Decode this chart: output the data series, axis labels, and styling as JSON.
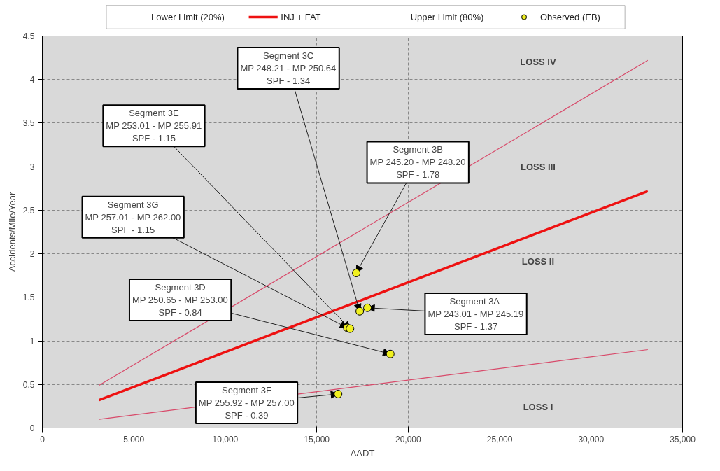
{
  "chart_data": {
    "type": "line",
    "xlabel": "AADT",
    "ylabel": "Accidents/Mile/Year",
    "xlim": [
      0,
      35000
    ],
    "ylim": [
      0,
      4.5
    ],
    "xticks": [
      0,
      {
        "value": 5000,
        "label": "5,000"
      },
      {
        "value": 10000,
        "label": "10,000"
      },
      {
        "value": 15000,
        "label": "15,000"
      },
      {
        "value": 20000,
        "label": "20,000"
      },
      {
        "value": 25000,
        "label": "25,000"
      },
      {
        "value": 30000,
        "label": "30,000"
      },
      {
        "value": 35000,
        "label": "35,000"
      }
    ],
    "yticks": [
      0,
      0.5,
      1,
      1.5,
      2,
      2.5,
      3,
      3.5,
      4,
      4.5
    ],
    "grid": true,
    "legend": "top",
    "line_style": "solid",
    "series": [
      {
        "name": "Lower Limit (20%)",
        "color": "#d84a6a",
        "x": [
          3100,
          33100
        ],
        "values": [
          0.1,
          0.9
        ]
      },
      {
        "name": "INJ + FAT",
        "color": "#ee1111",
        "x": [
          3100,
          33100
        ],
        "values": [
          0.32,
          2.72
        ]
      },
      {
        "name": "Upper Limit (80%)",
        "color": "#d84a6a",
        "x": [
          3100,
          33100
        ],
        "values": [
          0.49,
          4.22
        ]
      },
      {
        "name": "Observed (EB)",
        "type": "scatter",
        "marker": "circle",
        "color": "#f0f020",
        "x": [
          17770,
          17160,
          17350,
          16670,
          16820,
          16170,
          19020
        ],
        "values": [
          1.38,
          1.78,
          1.34,
          1.15,
          1.14,
          0.39,
          0.85
        ]
      }
    ],
    "annotations": [
      {
        "text": "Segment 3C\nMP 248.21 - MP 250.64\nSPF - 1.34",
        "x": 17350,
        "y": 1.34
      },
      {
        "text": "Segment 3E\nMP 253.01 - MP 255.91\nSPF - 1.15",
        "x": 16820,
        "y": 1.14
      },
      {
        "text": "Segment 3B\nMP 245.20 - MP 248.20\nSPF - 1.78",
        "x": 17160,
        "y": 1.78
      },
      {
        "text": "Segment 3G\nMP 257.01 - MP 262.00\nSPF - 1.15",
        "x": 16670,
        "y": 1.15
      },
      {
        "text": "Segment 3D\nMP 250.65 - MP 253.00\nSPF - 0.84",
        "x": 19020,
        "y": 0.85
      },
      {
        "text": "Segment  3A\nMP 243.01 - MP 245.19\nSPF - 1.37",
        "x": 17770,
        "y": 1.38
      },
      {
        "text": "Segment 3F\nMP 255.92 - MP 257.00\nSPF - 0.39",
        "x": 16170,
        "y": 0.39
      },
      "LOSS IV",
      "LOSS III",
      "LOSS II",
      "LOSS I"
    ]
  }
}
